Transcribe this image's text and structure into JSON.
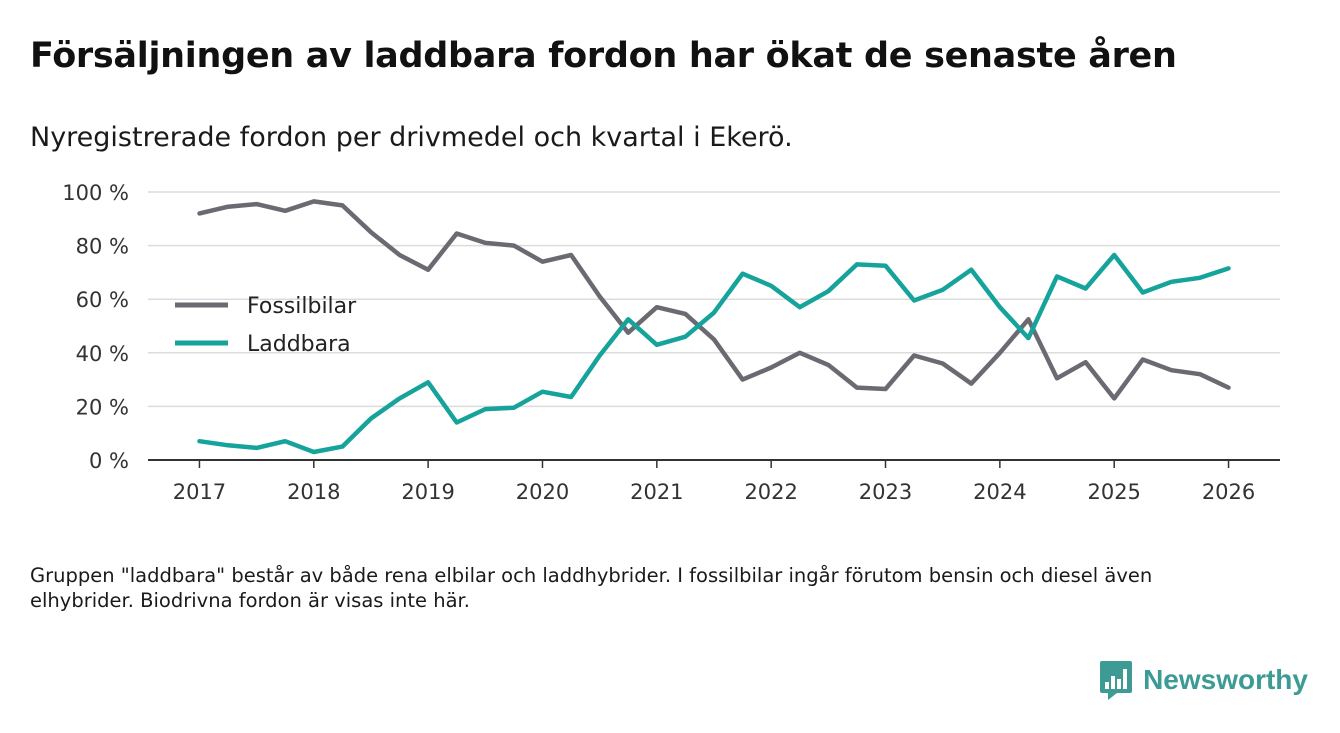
{
  "title": "Försäljningen av laddbara fordon har ökat de senaste åren",
  "subtitle": "Nyregistrerade fordon per drivmedel och kvartal i Ekerö.",
  "footnote": "Gruppen \"laddbara\" består av både rena elbilar och laddhybrider. I fossilbilar ingår förutom bensin och diesel även elhybrider. Biodrivna fordon är visas inte här.",
  "brand": {
    "name": "Newsworthy",
    "logo_icon": "bar-chart-speech-bubble-icon",
    "color": "#3d9a95"
  },
  "chart_data": {
    "type": "line",
    "title": "Försäljningen av laddbara fordon har ökat de senaste åren",
    "xlabel": "",
    "ylabel": "",
    "ylim": [
      0,
      100
    ],
    "yticks": [
      0,
      20,
      40,
      60,
      80,
      100
    ],
    "ytick_labels": [
      "0 %",
      "20 %",
      "40 %",
      "60 %",
      "80 %",
      "100 %"
    ],
    "xlim": [
      2016.55,
      2026.45
    ],
    "xticks": [
      2017,
      2018,
      2019,
      2020,
      2021,
      2022,
      2023,
      2024,
      2025,
      2026
    ],
    "xtick_labels": [
      "2017",
      "2018",
      "2019",
      "2020",
      "2021",
      "2022",
      "2023",
      "2024",
      "2025",
      "2026"
    ],
    "grid": true,
    "legend_position": "center-left",
    "x": [
      2017,
      2017.25,
      2017.5,
      2017.75,
      2018,
      2018.25,
      2018.5,
      2018.75,
      2019,
      2019.25,
      2019.5,
      2019.75,
      2020,
      2020.25,
      2020.5,
      2020.75,
      2021,
      2021.25,
      2021.5,
      2021.75,
      2022,
      2022.25,
      2022.5,
      2022.75,
      2023,
      2023.25,
      2023.5,
      2023.75,
      2024,
      2024.25,
      2024.5,
      2024.75,
      2025,
      2025.25,
      2025.5,
      2025.75,
      2026
    ],
    "series": [
      {
        "name": "Fossilbilar",
        "color": "#6b6a72",
        "values": [
          92,
          94.5,
          95.5,
          93,
          96.5,
          95,
          85,
          76.5,
          71,
          84.5,
          81,
          80,
          74,
          76.5,
          61,
          47.5,
          57,
          54.5,
          45,
          30,
          34.5,
          40,
          35.5,
          27,
          26.5,
          39,
          36,
          28.5,
          40,
          52.5,
          30.5,
          36.5,
          23,
          37.5,
          33.5,
          32,
          27
        ]
      },
      {
        "name": "Laddbara",
        "color": "#16a39b",
        "values": [
          7,
          5.5,
          4.5,
          7,
          3,
          5,
          15.5,
          23,
          29,
          14,
          19,
          19.5,
          25.5,
          23.5,
          39,
          52.5,
          43,
          46,
          55,
          69.5,
          65,
          57,
          63,
          73,
          72.5,
          59.5,
          63.5,
          71,
          57,
          45.5,
          68.5,
          64,
          76.5,
          62.5,
          66.5,
          68,
          71.5
        ]
      }
    ]
  }
}
